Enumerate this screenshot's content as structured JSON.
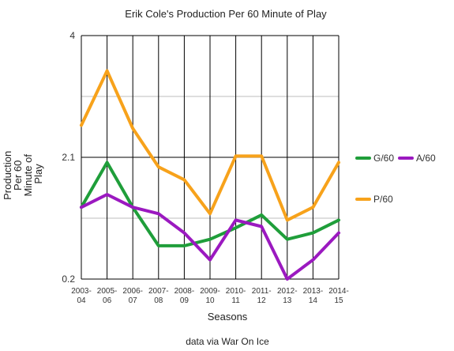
{
  "chart_data": {
    "type": "line",
    "title": "Erik Cole's Production Per 60 Minute of Play",
    "xlabel": "Seasons",
    "ylabel": [
      "Production",
      "Per 60",
      "Minute of",
      "Play"
    ],
    "credit": "data via War On Ice",
    "categories": [
      [
        "2003-",
        "04"
      ],
      [
        "2005-",
        "06"
      ],
      [
        "2006-",
        "07"
      ],
      [
        "2007-",
        "08"
      ],
      [
        "2008-",
        "09"
      ],
      [
        "2009-",
        "10"
      ],
      [
        "2010-",
        "11"
      ],
      [
        "2011-",
        "12"
      ],
      [
        "2012-",
        "13"
      ],
      [
        "2013-",
        "14"
      ],
      [
        "2014-",
        "15"
      ]
    ],
    "y_ticks": [
      {
        "label": "4",
        "value": 4
      },
      {
        "label": "2.1",
        "value": 2.1
      },
      {
        "label": "0.2",
        "value": 0.2
      }
    ],
    "ylim": [
      0.2,
      4
    ],
    "grid": true,
    "legend_position": "right",
    "series": [
      {
        "name": "G/60",
        "color": "#1f9e3a",
        "values": [
          1.32,
          2.02,
          1.32,
          0.72,
          0.72,
          0.82,
          1.0,
          1.2,
          0.82,
          0.92,
          1.12
        ]
      },
      {
        "name": "A/60",
        "color": "#9b19c0",
        "values": [
          1.32,
          1.52,
          1.32,
          1.22,
          0.92,
          0.5,
          1.12,
          1.02,
          0.2,
          0.5,
          0.92
        ]
      },
      {
        "name": "P/60",
        "color": "#f7a21b",
        "values": [
          2.6,
          3.45,
          2.55,
          1.95,
          1.75,
          1.22,
          2.12,
          2.12,
          1.12,
          1.32,
          2.02
        ]
      }
    ]
  }
}
